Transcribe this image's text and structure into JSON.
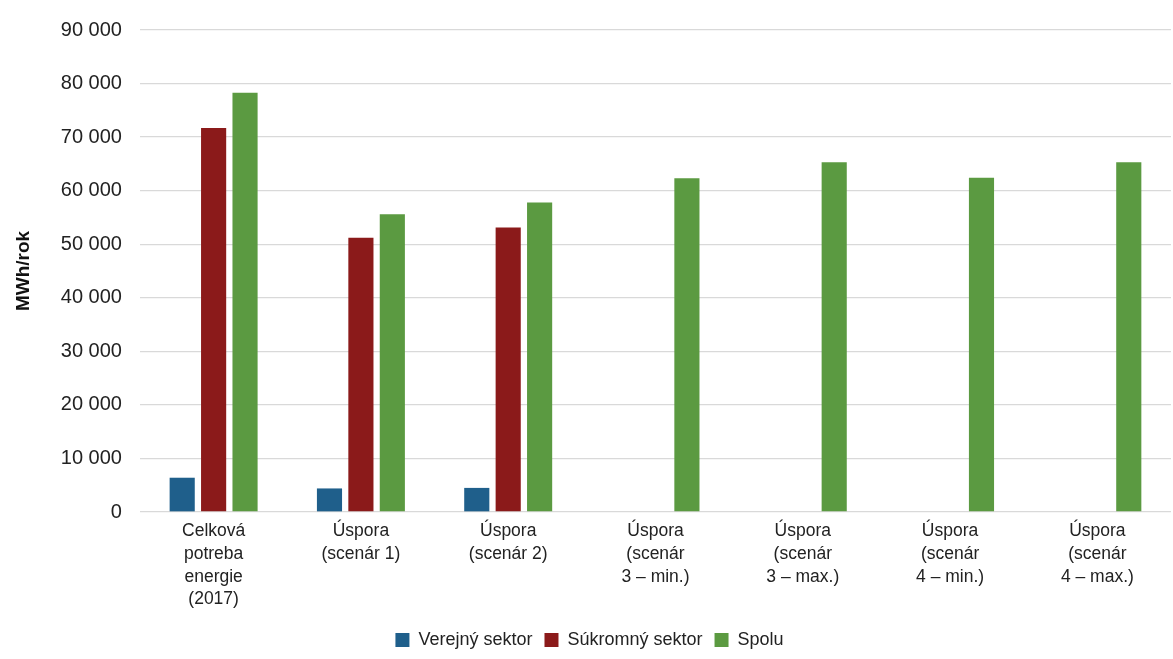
{
  "chart_data": {
    "type": "bar",
    "ylabel": "MWh/rok",
    "categories": [
      "Celková potreba energie (2017)",
      "Úspora (scenár 1)",
      "Úspora (scenár 2)",
      "Úspora (scenár 3 – min.)",
      "Úspora (scenár 3 – max.)",
      "Úspora (scenár 4 – min.)",
      "Úspora (scenár 4 – max.)"
    ],
    "series": [
      {
        "name": "Verejný sektor",
        "color": "#1f5f8b",
        "values": [
          6400,
          4400,
          4500,
          null,
          null,
          null,
          null
        ]
      },
      {
        "name": "Súkromný sektor",
        "color": "#8b1a1a",
        "values": [
          71700,
          51200,
          53100,
          null,
          null,
          null,
          null
        ]
      },
      {
        "name": "Spolu",
        "color": "#5b9a41",
        "values": [
          78300,
          55600,
          57800,
          62300,
          65300,
          62400,
          65300
        ]
      }
    ],
    "ylim": [
      0,
      90000
    ],
    "yticks": [
      {
        "value": 0,
        "label": "0"
      },
      {
        "value": 10000,
        "label": "10 000"
      },
      {
        "value": 20000,
        "label": "20 000"
      },
      {
        "value": 30000,
        "label": "30 000"
      },
      {
        "value": 40000,
        "label": "40 000"
      },
      {
        "value": 50000,
        "label": "50 000"
      },
      {
        "value": 60000,
        "label": "60 000"
      },
      {
        "value": 70000,
        "label": "70 000"
      },
      {
        "value": 80000,
        "label": "80 000"
      },
      {
        "value": 90000,
        "label": "90 000"
      }
    ],
    "grid": "y",
    "legend": "bottom"
  }
}
